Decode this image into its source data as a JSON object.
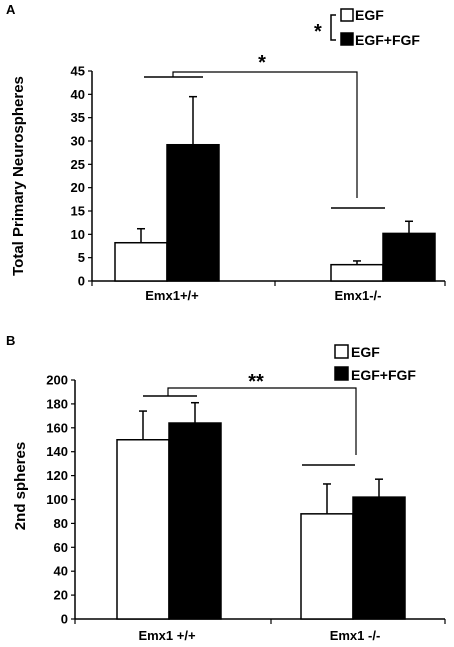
{
  "chart_data": [
    {
      "panel": "A",
      "type": "bar",
      "ylabel": "Total Primary Neurospheres",
      "ylim": [
        0,
        45
      ],
      "yticks": [
        0,
        5,
        10,
        15,
        20,
        25,
        30,
        35,
        40,
        45
      ],
      "categories": [
        "Emx1+/+",
        "Emx1-/-"
      ],
      "series": [
        {
          "name": "EGF",
          "color": "#ffffff",
          "values": [
            8.2,
            3.5
          ],
          "errors": [
            3.0,
            0.8
          ]
        },
        {
          "name": "EGF+FGF",
          "color": "#000000",
          "values": [
            29.2,
            10.2
          ],
          "errors": [
            10.3,
            2.6
          ]
        }
      ],
      "legend_star": "*",
      "comparison_star": "*"
    },
    {
      "panel": "B",
      "type": "bar",
      "ylabel": "2nd spheres",
      "ylim": [
        0,
        200
      ],
      "yticks": [
        0,
        20,
        40,
        60,
        80,
        100,
        120,
        140,
        160,
        180,
        200
      ],
      "categories": [
        "Emx1 +/+",
        "Emx1 -/-"
      ],
      "series": [
        {
          "name": "EGF",
          "color": "#ffffff",
          "values": [
            150,
            88
          ],
          "errors": [
            24,
            25
          ]
        },
        {
          "name": "EGF+FGF",
          "color": "#000000",
          "values": [
            164,
            102
          ],
          "errors": [
            17,
            15
          ]
        }
      ],
      "legend_star": "",
      "comparison_star": "**"
    }
  ]
}
